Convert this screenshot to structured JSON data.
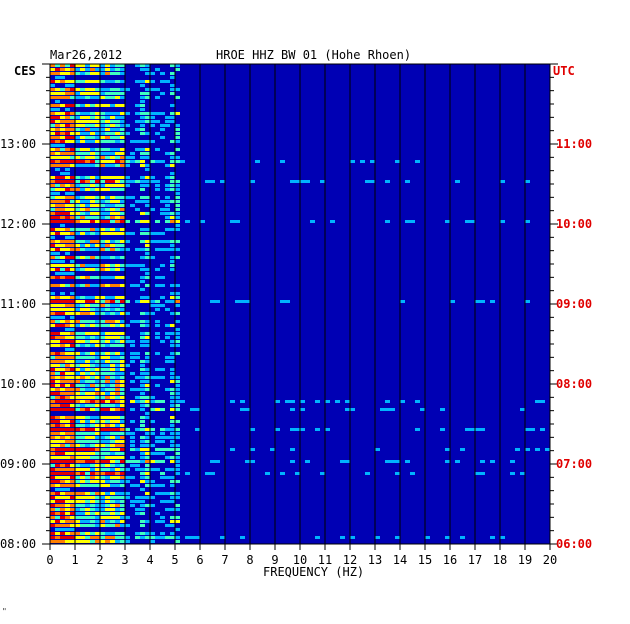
{
  "header": {
    "date": "Mar26,2012",
    "station": "HROE HHZ BW 01 (Hohe Rhoen)"
  },
  "footer": {
    "mark": "\""
  },
  "chart_data": {
    "type": "heatmap",
    "title": "HROE HHZ BW 01 (Hohe Rhoen)",
    "date": "Mar26,2012",
    "xlabel": "FREQUENCY (HZ)",
    "x_ticks": [
      "0",
      "1",
      "2",
      "3",
      "4",
      "5",
      "6",
      "7",
      "8",
      "9",
      "10",
      "11",
      "12",
      "13",
      "14",
      "15",
      "16",
      "17",
      "18",
      "19",
      "20"
    ],
    "xlim": [
      0,
      20
    ],
    "left_axis_label": "CES",
    "right_axis_label": "UTC",
    "left_ticks": [
      "08:00",
      "09:00",
      "10:00",
      "11:00",
      "12:00",
      "13:00"
    ],
    "right_ticks": [
      "06:00",
      "07:00",
      "08:00",
      "09:00",
      "10:00",
      "11:00"
    ],
    "time_range_ces": [
      "08:00",
      "13:50"
    ],
    "colors": {
      "background": "#0000b4",
      "gridline": "#000000",
      "utc_label": "#e00000",
      "scale": [
        "#0000b4",
        "#0050ff",
        "#00b4ff",
        "#40ffc0",
        "#ffff00",
        "#ff8000",
        "#e00000"
      ]
    }
  }
}
